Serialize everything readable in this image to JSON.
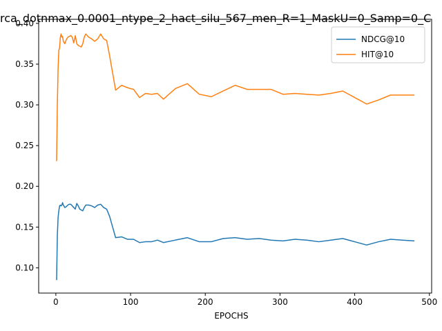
{
  "chart_data": {
    "type": "line",
    "title": "rca_dotnmax_0.0001_ntype_2_hact_silu_567_men_R=1_MaskU=0_Samp=0_C",
    "xlabel": "EPOCHS",
    "ylabel": "",
    "xlim": [
      -23,
      503
    ],
    "ylim": [
      0.069,
      0.405
    ],
    "xticks": [
      0,
      100,
      200,
      300,
      400,
      500
    ],
    "yticks": [
      0.1,
      0.15,
      0.2,
      0.25,
      0.3,
      0.35,
      0.4
    ],
    "ytick_labels": [
      "0.10",
      "0.15",
      "0.20",
      "0.25",
      "0.30",
      "0.35",
      "0.40"
    ],
    "grid": false,
    "legend_position": "top-right",
    "series": [
      {
        "name": "NDCG@10",
        "color": "#1f77b4",
        "x": [
          1,
          2,
          3,
          4,
          5,
          6,
          7,
          8,
          9,
          10,
          12,
          14,
          16,
          18,
          20,
          22,
          24,
          26,
          28,
          30,
          32,
          34,
          36,
          38,
          40,
          44,
          48,
          52,
          56,
          60,
          64,
          68,
          72,
          80,
          88,
          96,
          104,
          112,
          120,
          128,
          136,
          144,
          160,
          176,
          192,
          208,
          224,
          240,
          256,
          272,
          288,
          304,
          320,
          336,
          352,
          368,
          384,
          400,
          416,
          432,
          448,
          464,
          480
        ],
        "values": [
          0.085,
          0.14,
          0.162,
          0.17,
          0.176,
          0.177,
          0.176,
          0.177,
          0.18,
          0.177,
          0.174,
          0.175,
          0.177,
          0.178,
          0.178,
          0.176,
          0.174,
          0.172,
          0.179,
          0.176,
          0.172,
          0.171,
          0.17,
          0.174,
          0.177,
          0.177,
          0.176,
          0.174,
          0.177,
          0.178,
          0.174,
          0.172,
          0.163,
          0.137,
          0.138,
          0.135,
          0.135,
          0.131,
          0.132,
          0.132,
          0.134,
          0.131,
          0.134,
          0.137,
          0.132,
          0.132,
          0.136,
          0.137,
          0.135,
          0.136,
          0.134,
          0.133,
          0.135,
          0.134,
          0.132,
          0.134,
          0.136,
          0.132,
          0.128,
          0.132,
          0.135,
          0.134,
          0.133
        ]
      },
      {
        "name": "HIT@10",
        "color": "#ff7f0e",
        "x": [
          1,
          2,
          3,
          4,
          5,
          6,
          7,
          8,
          9,
          10,
          12,
          14,
          16,
          18,
          20,
          22,
          24,
          26,
          28,
          30,
          32,
          34,
          36,
          38,
          40,
          44,
          48,
          52,
          56,
          60,
          64,
          68,
          72,
          80,
          88,
          96,
          104,
          112,
          120,
          128,
          136,
          144,
          160,
          176,
          192,
          208,
          224,
          240,
          256,
          272,
          288,
          304,
          320,
          336,
          352,
          368,
          384,
          400,
          416,
          432,
          448,
          464,
          480
        ],
        "values": [
          0.231,
          0.3,
          0.345,
          0.367,
          0.37,
          0.383,
          0.387,
          0.383,
          0.384,
          0.378,
          0.375,
          0.38,
          0.383,
          0.384,
          0.385,
          0.383,
          0.376,
          0.385,
          0.375,
          0.373,
          0.372,
          0.371,
          0.375,
          0.383,
          0.387,
          0.383,
          0.381,
          0.378,
          0.381,
          0.387,
          0.381,
          0.379,
          0.36,
          0.318,
          0.324,
          0.321,
          0.319,
          0.309,
          0.314,
          0.313,
          0.314,
          0.307,
          0.32,
          0.326,
          0.313,
          0.31,
          0.317,
          0.324,
          0.319,
          0.319,
          0.319,
          0.313,
          0.314,
          0.313,
          0.312,
          0.314,
          0.317,
          0.309,
          0.301,
          0.306,
          0.312,
          0.312,
          0.312
        ]
      }
    ]
  }
}
